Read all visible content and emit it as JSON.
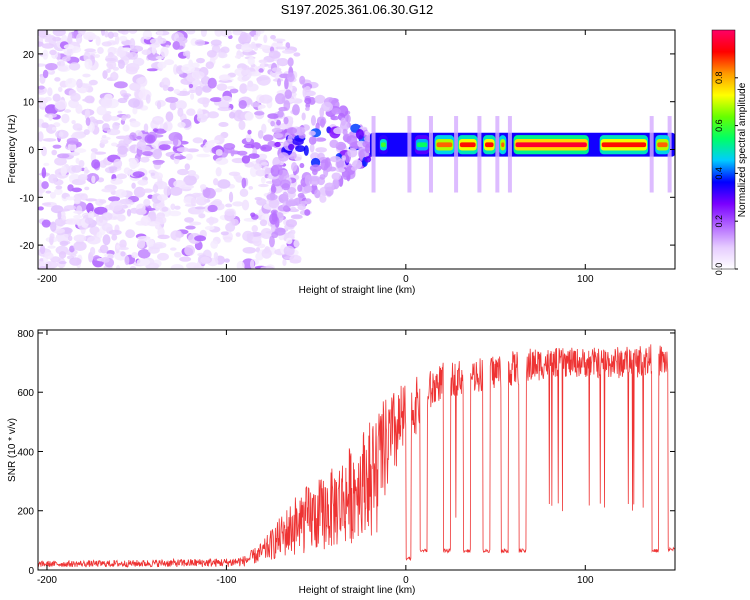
{
  "title": "S197.2025.361.06.30.G12",
  "chart_data": [
    {
      "type": "heatmap",
      "name": "spectrogram",
      "xlabel": "Height of straight line (km)",
      "ylabel": "Frequency (Hz)",
      "xlim": [
        -205,
        150
      ],
      "ylim": [
        -25,
        25
      ],
      "xticks": [
        -200,
        -100,
        0,
        100
      ],
      "yticks": [
        -20,
        -10,
        0,
        10,
        20
      ],
      "xtick_labels": [
        "-200",
        "-100",
        "0",
        "100"
      ],
      "ytick_labels": [
        "-20",
        "-10",
        "0",
        "10",
        "20"
      ],
      "colorbar": {
        "label": "Normalized spectral amplitude",
        "range": [
          0,
          1
        ],
        "ticks": [
          0.0,
          0.2,
          0.4,
          0.6,
          0.8
        ],
        "tick_labels": [
          "0.0",
          "0.2",
          "0.4",
          "0.6",
          "0.8"
        ],
        "colormap": [
          "#ffffff",
          "#e6ccff",
          "#b266ff",
          "#7a00ff",
          "#0000ff",
          "#00ccff",
          "#00ff66",
          "#66ff00",
          "#ffff00",
          "#ff9900",
          "#ff0000",
          "#ff0066"
        ]
      },
      "features": {
        "noise_region_x": [
          -205,
          -60
        ],
        "blob_region_x": [
          -60,
          -20
        ],
        "carrier_region_x": [
          -20,
          150
        ],
        "carrier_frequency": 1,
        "carrier_segments": [
          {
            "x": [
              -15,
              -10
            ],
            "amplitude": 0.6
          },
          {
            "x": [
              5,
              13
            ],
            "amplitude": 0.55
          },
          {
            "x": [
              16,
              27
            ],
            "amplitude": 0.85
          },
          {
            "x": [
              29,
              40
            ],
            "amplitude": 0.9
          },
          {
            "x": [
              43,
              50
            ],
            "amplitude": 0.9
          },
          {
            "x": [
              52,
              56
            ],
            "amplitude": 0.85
          },
          {
            "x": [
              60,
              102
            ],
            "amplitude": 0.95
          },
          {
            "x": [
              108,
              135
            ],
            "amplitude": 0.9
          },
          {
            "x": [
              139,
              147
            ],
            "amplitude": 0.85
          }
        ]
      }
    },
    {
      "type": "line",
      "name": "snr",
      "xlabel": "Height of straight line (km)",
      "ylabel": "SNR (10 * v/v)",
      "xlim": [
        -205,
        150
      ],
      "ylim": [
        0,
        810
      ],
      "xticks": [
        -200,
        -100,
        0,
        100
      ],
      "yticks": [
        0,
        200,
        400,
        600,
        800
      ],
      "xtick_labels": [
        "-200",
        "-100",
        "0",
        "100"
      ],
      "ytick_labels": [
        "0",
        "200",
        "400",
        "600",
        "800"
      ],
      "color": "#ee3333",
      "envelope": {
        "x": [
          -205,
          -150,
          -100,
          -90,
          -80,
          -70,
          -60,
          -50,
          -40,
          -30,
          -20,
          -10,
          0,
          10,
          20,
          30,
          40,
          50,
          60,
          70,
          80,
          100,
          120,
          140,
          150
        ],
        "mean": [
          20,
          22,
          25,
          30,
          60,
          110,
          160,
          180,
          210,
          260,
          330,
          420,
          520,
          580,
          640,
          650,
          660,
          670,
          680,
          690,
          700,
          700,
          700,
          710,
          700
        ],
        "spread": [
          10,
          12,
          15,
          18,
          35,
          70,
          110,
          120,
          140,
          170,
          180,
          170,
          120,
          80,
          60,
          60,
          60,
          60,
          60,
          60,
          50,
          50,
          55,
          55,
          55
        ]
      },
      "dropouts": [
        {
          "x": [
            0,
            3
          ],
          "value": 40
        },
        {
          "x": [
            8,
            12
          ],
          "value": 65
        },
        {
          "x": [
            21,
            25
          ],
          "value": 65
        },
        {
          "x": [
            32,
            36
          ],
          "value": 65
        },
        {
          "x": [
            43,
            47
          ],
          "value": 65
        },
        {
          "x": [
            53,
            57
          ],
          "value": 65
        },
        {
          "x": [
            63,
            67
          ],
          "value": 65
        },
        {
          "x": [
            137,
            141
          ],
          "value": 65
        },
        {
          "x": [
            146,
            150
          ],
          "value": 70
        }
      ]
    }
  ]
}
